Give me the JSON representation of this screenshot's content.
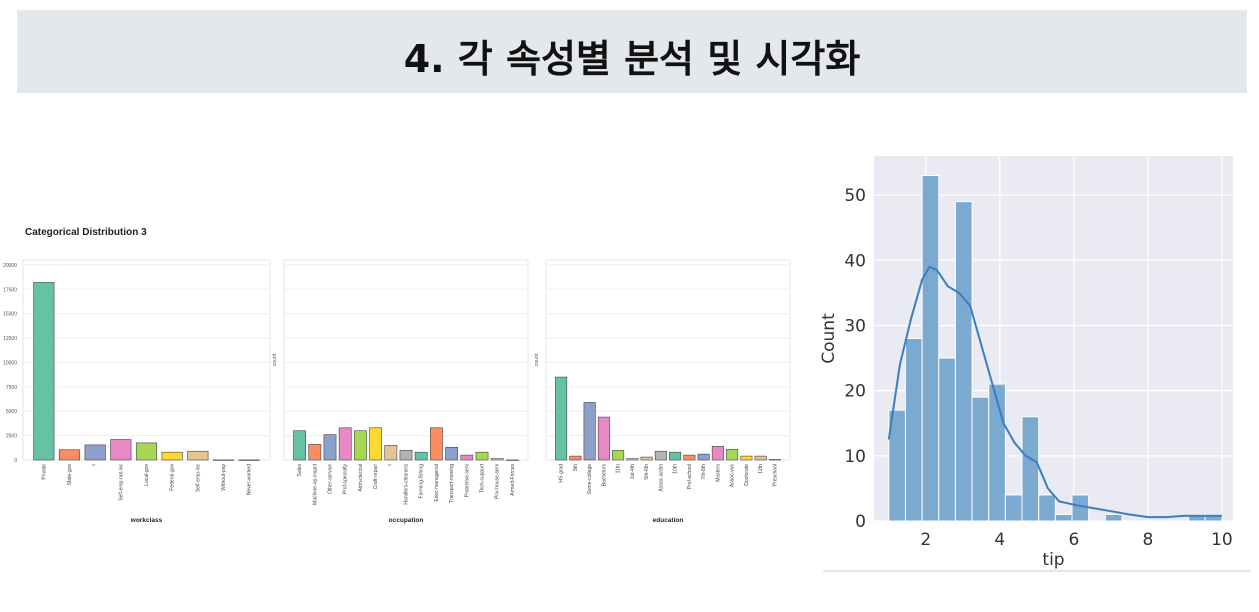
{
  "banner": {
    "title": "4. 각 속성별 분석 및 시각화"
  },
  "chart_data": [
    {
      "type": "bar",
      "title": "Categorical Distribution 3",
      "panels": [
        {
          "xlabel": "workclass",
          "ylabel": "",
          "ylim": [
            0,
            20500
          ],
          "yticks": [
            "0",
            "2500",
            "5000",
            "7500",
            "10000",
            "12500",
            "15000",
            "17500",
            "20000"
          ],
          "categories": [
            "Private",
            "State-gov",
            "?",
            "Self-emp-not-inc",
            "Local-gov",
            "Federal-gov",
            "Self-emp-inc",
            "Without-pay",
            "Never-worked"
          ],
          "values": [
            18200,
            1050,
            1550,
            2100,
            1750,
            800,
            900,
            15,
            8
          ],
          "colors": [
            "#66c2a5",
            "#fc8d62",
            "#8da0cb",
            "#e78ac3",
            "#a6d854",
            "#ffd92f",
            "#e5c494",
            "#b3b3b3",
            "#66c2a5"
          ]
        },
        {
          "xlabel": "occupation",
          "ylabel": "count",
          "ylim": [
            0,
            20500
          ],
          "categories": [
            "Sales",
            "Machine-op-inspct",
            "Other-service",
            "Prof-specialty",
            "Adm-clerical",
            "Craft-repair",
            "?",
            "Handlers-cleaners",
            "Farming-fishing",
            "Exec-managerial",
            "Transport-moving",
            "Protective-serv",
            "Tech-support",
            "Priv-house-serv",
            "Armed-Forces"
          ],
          "values": [
            3000,
            1600,
            2600,
            3300,
            3000,
            3300,
            1500,
            1000,
            800,
            3300,
            1300,
            500,
            800,
            150,
            10
          ],
          "colors": [
            "#66c2a5",
            "#fc8d62",
            "#8da0cb",
            "#e78ac3",
            "#a6d854",
            "#ffd92f",
            "#e5c494",
            "#b3b3b3",
            "#66c2a5",
            "#fc8d62",
            "#8da0cb",
            "#e78ac3",
            "#a6d854",
            "#ffd92f",
            "#e5c494"
          ]
        },
        {
          "xlabel": "education",
          "ylabel": "count",
          "ylim": [
            0,
            20500
          ],
          "categories": [
            "HS-grad",
            "9th",
            "Some-college",
            "Bachelors",
            "11th",
            "1st-4th",
            "5th-6th",
            "Assoc-acdm",
            "10th",
            "Prof-school",
            "7th-8th",
            "Masters",
            "Assoc-voc",
            "Doctorate",
            "12th",
            "Preschool"
          ],
          "values": [
            8500,
            400,
            5900,
            4400,
            1000,
            150,
            300,
            900,
            800,
            500,
            600,
            1400,
            1100,
            400,
            400,
            50
          ],
          "colors": [
            "#66c2a5",
            "#fc8d62",
            "#8da0cb",
            "#e78ac3",
            "#a6d854",
            "#ffd92f",
            "#e5c494",
            "#b3b3b3",
            "#66c2a5",
            "#fc8d62",
            "#8da0cb",
            "#e78ac3",
            "#a6d854",
            "#ffd92f",
            "#e5c494",
            "#b3b3b3"
          ]
        }
      ]
    },
    {
      "type": "histogram",
      "xlabel": "tip",
      "ylabel": "Count",
      "xlim": [
        0.6,
        10.3
      ],
      "ylim": [
        0,
        56
      ],
      "xticks": [
        2,
        4,
        6,
        8,
        10
      ],
      "yticks": [
        0,
        10,
        20,
        30,
        40,
        50
      ],
      "bin_start": 1.0,
      "bin_width": 0.45,
      "counts": [
        17,
        28,
        53,
        25,
        49,
        19,
        21,
        4,
        16,
        4,
        1,
        4,
        0,
        1,
        0,
        0,
        0,
        0,
        1,
        1
      ],
      "kde": {
        "x": [
          1.0,
          1.3,
          1.6,
          1.9,
          2.1,
          2.3,
          2.6,
          2.9,
          3.2,
          3.5,
          3.8,
          4.1,
          4.4,
          4.7,
          5.0,
          5.3,
          5.6,
          6.0,
          6.5,
          7.0,
          7.5,
          8.0,
          8.5,
          9.0,
          9.5,
          10.0
        ],
        "y": [
          12.5,
          24,
          31,
          37,
          39,
          38.5,
          36,
          35,
          33,
          27,
          21,
          15,
          12,
          10,
          9,
          5,
          3,
          2.5,
          2,
          1.5,
          1,
          0.6,
          0.6,
          0.8,
          0.8,
          0.8
        ]
      },
      "color": "#7ba9d0",
      "line_color": "#3a7ebf"
    }
  ]
}
